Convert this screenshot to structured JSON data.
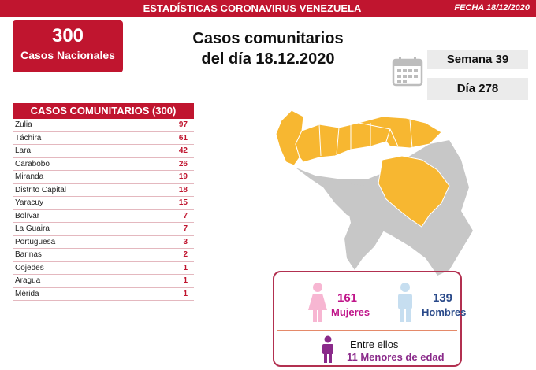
{
  "header": {
    "title": "ESTADÍSTICAS CORONAVIRUS VENEZUELA",
    "date": "FECHA 18/12/2020"
  },
  "summary": {
    "total": "300",
    "total_label": "Casos Nacionales"
  },
  "headline": {
    "line1": "Casos comunitarios",
    "line2": "del día 18.12.2020"
  },
  "calendar": {
    "week": "Semana 39",
    "day": "Día 278"
  },
  "table": {
    "title": "CASOS COMUNITARIOS (300)",
    "rows": [
      {
        "state": "Zulia",
        "count": "97"
      },
      {
        "state": "Táchira",
        "count": "61"
      },
      {
        "state": "Lara",
        "count": "42"
      },
      {
        "state": "Carabobo",
        "count": "26"
      },
      {
        "state": "Miranda",
        "count": "19"
      },
      {
        "state": "Distrito Capital",
        "count": "18"
      },
      {
        "state": "Yaracuy",
        "count": "15"
      },
      {
        "state": "Bolívar",
        "count": "7"
      },
      {
        "state": "La Guaira",
        "count": "7"
      },
      {
        "state": "Portuguesa",
        "count": "3"
      },
      {
        "state": "Barinas",
        "count": "2"
      },
      {
        "state": "Cojedes",
        "count": "1"
      },
      {
        "state": "Aragua",
        "count": "1"
      },
      {
        "state": "Mérida",
        "count": "1"
      }
    ]
  },
  "demographics": {
    "women_count": "161",
    "women_label": "Mujeres",
    "men_count": "139",
    "men_label": "Hombres",
    "minors_intro": "Entre ellos",
    "minors": "11 Menores de edad"
  },
  "colors": {
    "brand_red": "#c0152f",
    "affected": "#f7b731",
    "unaffected": "#c7c7c7",
    "women": "#c0158a",
    "men": "#2a4a8a",
    "minors": "#8a2a8a"
  }
}
